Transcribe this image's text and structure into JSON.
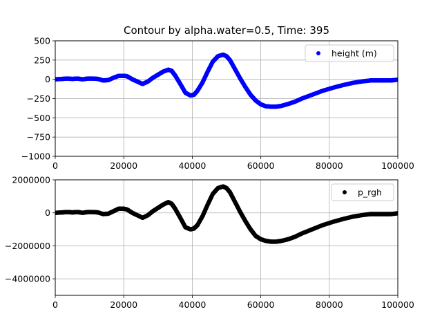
{
  "chart_data": [
    {
      "type": "scatter",
      "title": "Contour by alpha.water=0.5, Time: 395",
      "xlabel": "",
      "ylabel": "",
      "xlim": [
        0,
        100000
      ],
      "ylim": [
        -1000,
        500
      ],
      "xticks": [
        0,
        20000,
        40000,
        60000,
        80000,
        100000
      ],
      "xtick_labels": [
        "0",
        "20000",
        "40000",
        "60000",
        "80000",
        "100000"
      ],
      "yticks": [
        500,
        250,
        0,
        -250,
        -500,
        -750,
        -1000
      ],
      "ytick_labels": [
        "500",
        "250",
        "0",
        "−250",
        "−500",
        "−750",
        "−1000"
      ],
      "grid": true,
      "legend_position": "top-right",
      "series": [
        {
          "name": "height (m)",
          "color": "#0000ff",
          "x": [
            0,
            2000,
            3500,
            5000,
            6500,
            8000,
            9500,
            11000,
            12500,
            14000,
            15500,
            17000,
            18500,
            20000,
            21000,
            22500,
            24000,
            25500,
            27000,
            28500,
            30000,
            31500,
            33000,
            34000,
            35000,
            36500,
            38000,
            39500,
            40500,
            41500,
            43000,
            44500,
            46000,
            47500,
            49000,
            50000,
            51000,
            52500,
            54000,
            55500,
            57000,
            58500,
            60000,
            61500,
            63000,
            64500,
            66000,
            68000,
            70000,
            72000,
            75000,
            78000,
            81000,
            84000,
            87000,
            90000,
            92000,
            93500,
            95000,
            96500,
            98000,
            100000
          ],
          "y": [
            0,
            5,
            10,
            5,
            10,
            0,
            10,
            10,
            5,
            -15,
            -10,
            20,
            45,
            45,
            40,
            0,
            -30,
            -60,
            -30,
            20,
            60,
            100,
            125,
            110,
            50,
            -60,
            -175,
            -210,
            -200,
            -150,
            -40,
            100,
            230,
            300,
            320,
            300,
            250,
            130,
            10,
            -100,
            -200,
            -275,
            -325,
            -350,
            -355,
            -355,
            -345,
            -320,
            -290,
            -250,
            -200,
            -150,
            -110,
            -75,
            -45,
            -25,
            -15,
            -15,
            -15,
            -15,
            -15,
            -5
          ]
        },
        {
          "name": "p_rgh",
          "color": "#000000",
          "x": [
            0,
            2000,
            3500,
            5000,
            6500,
            8000,
            9500,
            11000,
            12500,
            14000,
            15500,
            17000,
            18500,
            20000,
            21000,
            22500,
            24000,
            25500,
            27000,
            28500,
            30000,
            31500,
            33000,
            34000,
            35000,
            36500,
            38000,
            39500,
            40500,
            41500,
            43000,
            44500,
            46000,
            47500,
            49000,
            50000,
            51000,
            52500,
            54000,
            55500,
            57000,
            58500,
            60000,
            61500,
            63000,
            64500,
            66000,
            68000,
            70000,
            72000,
            75000,
            78000,
            81000,
            84000,
            87000,
            90000,
            92000,
            93500,
            95000,
            96500,
            98000,
            100000
          ],
          "y": [
            0,
            25000,
            50000,
            25000,
            50000,
            0,
            50000,
            50000,
            25000,
            -75000,
            -50000,
            100000,
            250000,
            250000,
            200000,
            0,
            -150000,
            -300000,
            -150000,
            100000,
            300000,
            500000,
            650000,
            550000,
            250000,
            -300000,
            -875000,
            -1000000,
            -950000,
            -750000,
            -200000,
            500000,
            1150000,
            1500000,
            1600000,
            1500000,
            1250000,
            650000,
            50000,
            -500000,
            -1000000,
            -1400000,
            -1600000,
            -1700000,
            -1750000,
            -1750000,
            -1700000,
            -1600000,
            -1450000,
            -1250000,
            -1000000,
            -750000,
            -550000,
            -375000,
            -225000,
            -125000,
            -75000,
            -75000,
            -75000,
            -75000,
            -75000,
            -25000
          ]
        }
      ]
    },
    {
      "type": "scatter",
      "title": "",
      "xlabel": "",
      "ylabel": "",
      "xlim": [
        0,
        100000
      ],
      "ylim": [
        -5000000,
        2000000
      ],
      "xticks": [
        0,
        20000,
        40000,
        60000,
        80000,
        100000
      ],
      "xtick_labels": [
        "0",
        "20000",
        "40000",
        "60000",
        "80000",
        "100000"
      ],
      "yticks": [
        2000000,
        0,
        -2000000,
        -4000000
      ],
      "ytick_labels": [
        "2000000",
        "0",
        "−2000000",
        "−4000000"
      ],
      "grid": true,
      "legend_position": "top-right",
      "series": []
    }
  ]
}
